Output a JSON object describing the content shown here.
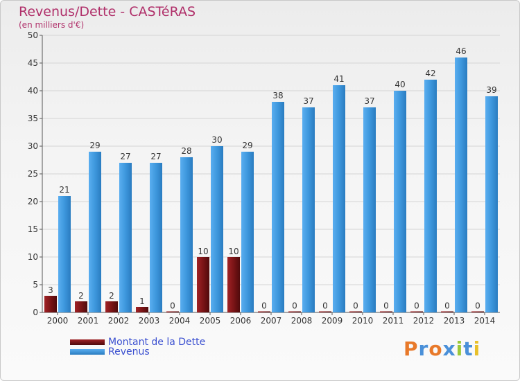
{
  "header": {
    "title": "Revenus/Dette - CASTéRAS",
    "subtitle": "(en milliers d'€)"
  },
  "colors": {
    "dette": "#7a1416",
    "revenus": "#3d97dd",
    "title": "#b0306a",
    "legend_text": "#3a4fd0"
  },
  "logo": {
    "text": "Proxiti",
    "colors": [
      "#e8792a",
      "#4a90d9",
      "#e8792a",
      "#4a90d9",
      "#9bc93a",
      "#4a90d9",
      "#e8c02a"
    ]
  },
  "chart_data": {
    "type": "bar",
    "title": "Revenus/Dette - CASTéRAS",
    "subtitle": "(en milliers d'€)",
    "categories": [
      "2000",
      "2001",
      "2002",
      "2003",
      "2004",
      "2005",
      "2006",
      "2007",
      "2008",
      "2009",
      "2010",
      "2011",
      "2012",
      "2013",
      "2014"
    ],
    "series": [
      {
        "name": "Montant de la Dette",
        "values": [
          3,
          2,
          2,
          1,
          0,
          10,
          10,
          0,
          0,
          0,
          0,
          0,
          0,
          0,
          0
        ]
      },
      {
        "name": "Revenus",
        "values": [
          21,
          29,
          27,
          27,
          28,
          30,
          29,
          38,
          37,
          41,
          37,
          40,
          42,
          46,
          39
        ]
      }
    ],
    "ylim": [
      0,
      50
    ],
    "yticks": [
      0,
      5,
      10,
      15,
      20,
      25,
      30,
      35,
      40,
      45,
      50
    ],
    "grid": "horizontal",
    "legend": "bottom-left"
  }
}
